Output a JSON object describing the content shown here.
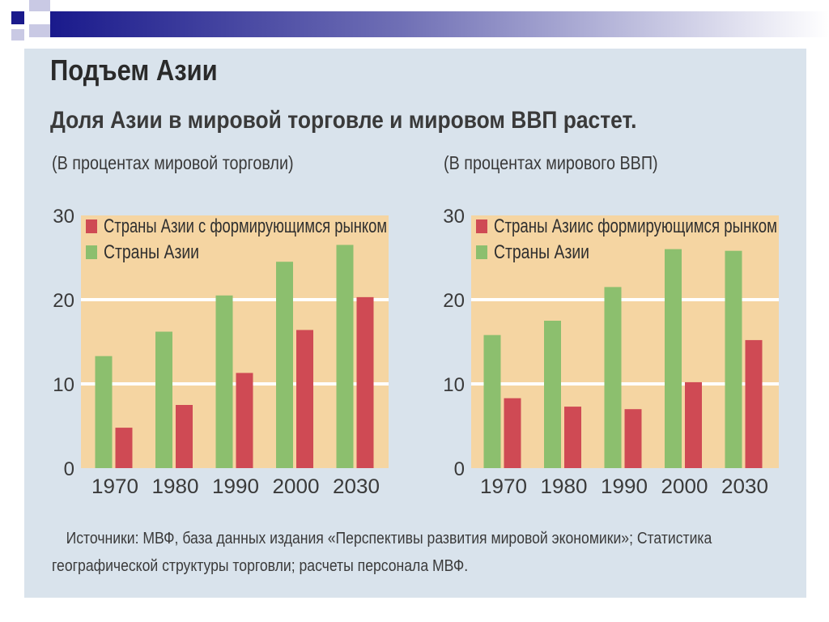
{
  "slide": {
    "title": "Подъем Азии",
    "subtitle": "Доля Азии в мировой торговле и мировом ВВП растет.",
    "source_line1": "Источники: МВФ, база данных издания «Перспективы развития мировой экономики»; Статистика",
    "source_line2": "географической структуры торговли; расчеты персонала МВФ."
  },
  "colors": {
    "plot_bg": "#f5d5a2",
    "gridline": "#ffffff",
    "green": "#8cbf6e",
    "red": "#cf4a54",
    "panel_bg": "#d9e3ec",
    "header_bar": "#1a1a8c"
  },
  "chart_data": [
    {
      "type": "bar",
      "units_label": "(В процентах мировой торговли)",
      "categories": [
        "1970",
        "1980",
        "1990",
        "2000",
        "2030"
      ],
      "series": [
        {
          "name": "Страны Азии",
          "color": "#8cbf6e",
          "values": [
            13.3,
            16.2,
            20.5,
            24.5,
            26.5
          ]
        },
        {
          "name": "Страны Азии с формирующимся рынком",
          "color": "#cf4a54",
          "values": [
            4.8,
            7.5,
            11.3,
            16.4,
            20.3
          ]
        }
      ],
      "legend_order": [
        "Страны Азии с формирующимся рынком",
        "Страны Азии"
      ],
      "legend_position": "top-left",
      "ylim": [
        0,
        30
      ],
      "yticks": [
        0,
        10,
        20,
        30
      ],
      "gridlines": [
        10,
        20
      ]
    },
    {
      "type": "bar",
      "units_label": "(В процентах мирового ВВП)",
      "categories": [
        "1970",
        "1980",
        "1990",
        "2000",
        "2030"
      ],
      "series": [
        {
          "name": "Страны Азии",
          "color": "#8cbf6e",
          "values": [
            15.8,
            17.5,
            21.5,
            26.0,
            25.8
          ]
        },
        {
          "name": "Страны Азиис формирующимся рынком",
          "color": "#cf4a54",
          "values": [
            8.3,
            7.3,
            7.0,
            10.2,
            15.2
          ]
        }
      ],
      "legend_order": [
        "Страны Азиис формирующимся рынком",
        "Страны Азии"
      ],
      "legend_position": "top-left",
      "ylim": [
        0,
        30
      ],
      "yticks": [
        0,
        10,
        20,
        30
      ],
      "gridlines": [
        10,
        20
      ]
    }
  ]
}
